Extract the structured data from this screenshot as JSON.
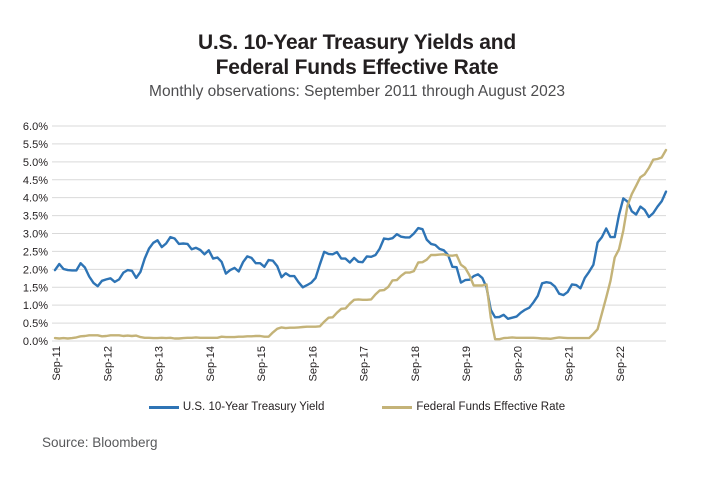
{
  "title": {
    "line1": "U.S. 10-Year Treasury Yields and",
    "line2": "Federal Funds Effective Rate"
  },
  "subtitle": "Monthly observations: September 2011 through August 2023",
  "source": "Source: Bloomberg",
  "legend": [
    {
      "label": "U.S. 10-Year Treasury Yield",
      "color": "#2E74B5"
    },
    {
      "label": "Federal Funds Effective Rate",
      "color": "#C4B378"
    }
  ],
  "colors": {
    "treasury_line": "#2E74B5",
    "fed_funds_line": "#C4B378",
    "gridline": "#D9D9D9",
    "title_text": "#231F20",
    "subtitle_text": "#4D4D4F",
    "source_text": "#58595B"
  },
  "chart_data": {
    "type": "line",
    "title": "U.S. 10-Year Treasury Yields and Federal Funds Effective Rate",
    "subtitle": "Monthly observations: September 2011 through August 2023",
    "x_start": "Sep-11",
    "x_end": "Aug-23",
    "x_tick_labels": [
      "Sep-11",
      "Sep-12",
      "Sep-13",
      "Sep-14",
      "Sep-15",
      "Sep-16",
      "Sep-17",
      "Sep-18",
      "Sep-19",
      "Sep-20",
      "Sep-21",
      "Sep-22"
    ],
    "x_tick_month_interval": 12,
    "y_tick_labels": [
      "6.0%",
      "5.5%",
      "5.0%",
      "4.5%",
      "4.0%",
      "3.5%",
      "3.0%",
      "2.5%",
      "2.0%",
      "1.5%",
      "1.0%",
      "0.5%",
      "0.0%"
    ],
    "ylim": [
      0,
      6
    ],
    "grid": "horizontal",
    "legend_position": "bottom",
    "series": [
      {
        "name": "U.S. 10-Year Treasury Yield",
        "color": "#2E74B5",
        "values": [
          1.98,
          2.15,
          2.01,
          1.98,
          1.97,
          1.97,
          2.17,
          2.05,
          1.8,
          1.62,
          1.53,
          1.68,
          1.72,
          1.75,
          1.65,
          1.72,
          1.91,
          1.98,
          1.96,
          1.76,
          1.93,
          2.3,
          2.58,
          2.74,
          2.81,
          2.62,
          2.72,
          2.9,
          2.86,
          2.71,
          2.72,
          2.71,
          2.56,
          2.6,
          2.54,
          2.42,
          2.53,
          2.3,
          2.33,
          2.21,
          1.88,
          1.98,
          2.04,
          1.94,
          2.2,
          2.36,
          2.32,
          2.17,
          2.17,
          2.07,
          2.26,
          2.24,
          2.09,
          1.78,
          1.89,
          1.81,
          1.81,
          1.64,
          1.5,
          1.56,
          1.63,
          1.76,
          2.14,
          2.49,
          2.43,
          2.42,
          2.48,
          2.3,
          2.3,
          2.19,
          2.32,
          2.21,
          2.2,
          2.36,
          2.35,
          2.4,
          2.58,
          2.86,
          2.84,
          2.87,
          2.98,
          2.91,
          2.89,
          2.89,
          3.0,
          3.15,
          3.12,
          2.83,
          2.71,
          2.68,
          2.57,
          2.53,
          2.4,
          2.07,
          2.06,
          1.63,
          1.7,
          1.71,
          1.81,
          1.86,
          1.76,
          1.5,
          0.87,
          0.66,
          0.67,
          0.73,
          0.62,
          0.65,
          0.68,
          0.79,
          0.87,
          0.93,
          1.08,
          1.26,
          1.61,
          1.64,
          1.62,
          1.52,
          1.32,
          1.28,
          1.37,
          1.58,
          1.56,
          1.47,
          1.76,
          1.93,
          2.13,
          2.75,
          2.9,
          3.14,
          2.9,
          2.9,
          3.52,
          3.98,
          3.89,
          3.62,
          3.53,
          3.75,
          3.66,
          3.46,
          3.57,
          3.75,
          3.9,
          4.17
        ]
      },
      {
        "name": "Federal Funds Effective Rate",
        "color": "#C4B378",
        "values": [
          0.08,
          0.07,
          0.08,
          0.07,
          0.08,
          0.1,
          0.13,
          0.14,
          0.16,
          0.16,
          0.16,
          0.13,
          0.14,
          0.16,
          0.16,
          0.16,
          0.14,
          0.15,
          0.14,
          0.15,
          0.11,
          0.09,
          0.09,
          0.08,
          0.08,
          0.09,
          0.08,
          0.09,
          0.07,
          0.07,
          0.08,
          0.09,
          0.09,
          0.1,
          0.09,
          0.09,
          0.09,
          0.09,
          0.09,
          0.12,
          0.11,
          0.11,
          0.11,
          0.12,
          0.12,
          0.13,
          0.13,
          0.14,
          0.14,
          0.12,
          0.12,
          0.24,
          0.34,
          0.38,
          0.36,
          0.37,
          0.37,
          0.38,
          0.39,
          0.4,
          0.4,
          0.4,
          0.41,
          0.54,
          0.65,
          0.66,
          0.79,
          0.9,
          0.91,
          1.04,
          1.15,
          1.16,
          1.15,
          1.15,
          1.16,
          1.3,
          1.41,
          1.42,
          1.51,
          1.69,
          1.7,
          1.82,
          1.91,
          1.91,
          1.95,
          2.19,
          2.2,
          2.27,
          2.4,
          2.4,
          2.41,
          2.42,
          2.39,
          2.38,
          2.4,
          2.13,
          2.04,
          1.83,
          1.55,
          1.55,
          1.55,
          1.58,
          0.65,
          0.05,
          0.05,
          0.08,
          0.09,
          0.1,
          0.09,
          0.09,
          0.09,
          0.09,
          0.09,
          0.08,
          0.07,
          0.07,
          0.06,
          0.08,
          0.1,
          0.09,
          0.08,
          0.08,
          0.08,
          0.08,
          0.08,
          0.08,
          0.2,
          0.33,
          0.77,
          1.21,
          1.68,
          2.33,
          2.56,
          3.08,
          3.78,
          4.1,
          4.33,
          4.57,
          4.65,
          4.83,
          5.06,
          5.08,
          5.12,
          5.33
        ]
      }
    ]
  }
}
